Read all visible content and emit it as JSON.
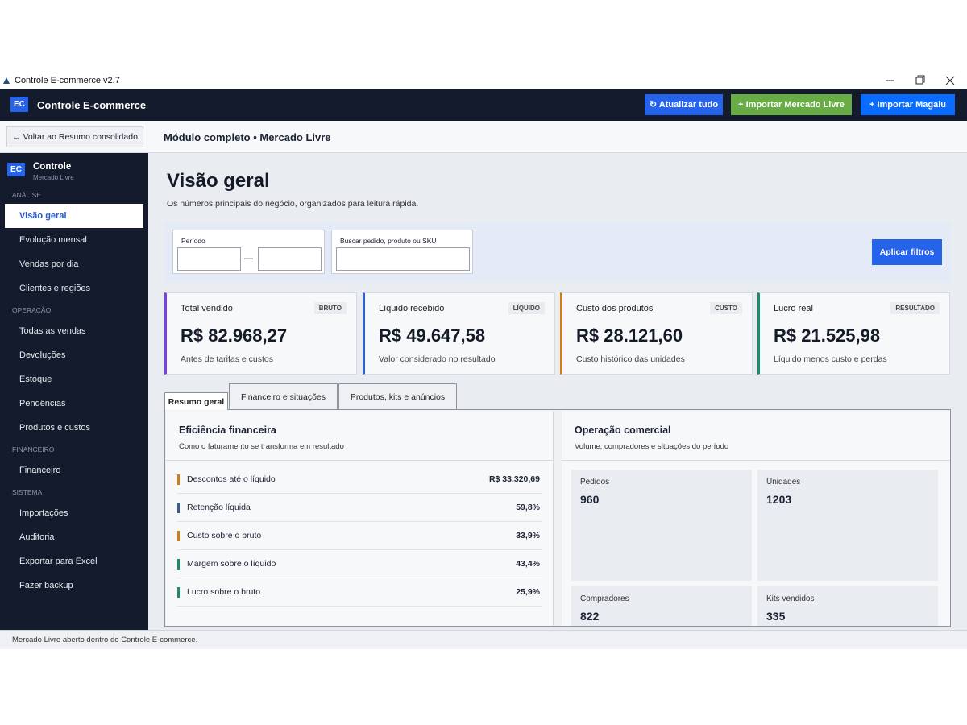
{
  "window": {
    "title": "Controle E-commerce v2.7"
  },
  "header": {
    "logo": "EC",
    "title": "Controle E-commerce",
    "buttons": [
      "↻ Atualizar tudo",
      "+ Importar Mercado Livre",
      "+ Importar Magalu"
    ]
  },
  "toolbar": {
    "back": "← Voltar ao Resumo consolidado",
    "title": "Módulo completo • Mercado Livre"
  },
  "sidebar": {
    "logo": "EC",
    "title": "Controle",
    "subtitle": "Mercado Livre",
    "sections": [
      {
        "label": "ANÁLISE",
        "items": [
          "Visão geral",
          "Evolução mensal",
          "Vendas por dia",
          "Clientes e regiões"
        ]
      },
      {
        "label": "OPERAÇÃO",
        "items": [
          "Todas as vendas",
          "Devoluções",
          "Estoque",
          "Pendências",
          "Produtos e custos"
        ]
      },
      {
        "label": "FINANCEIRO",
        "items": [
          "Financeiro"
        ]
      },
      {
        "label": "SISTEMA",
        "items": [
          "Importações",
          "Auditoria",
          "Exportar para Excel",
          "Fazer backup"
        ]
      }
    ]
  },
  "page": {
    "title": "Visão geral",
    "subtitle": "Os números principais do negócio, organizados para leitura rápida.",
    "filters": {
      "period_label": "Período",
      "separator": "—",
      "search_label": "Buscar pedido, produto ou SKU",
      "apply": "Aplicar filtros"
    }
  },
  "cards": [
    {
      "title": "Total vendido",
      "badge": "BRUTO",
      "value": "R$ 82.968,27",
      "note": "Antes de tarifas e custos"
    },
    {
      "title": "Líquido recebido",
      "badge": "LÍQUIDO",
      "value": "R$ 49.647,58",
      "note": "Valor considerado no resultado"
    },
    {
      "title": "Custo dos produtos",
      "badge": "CUSTO",
      "value": "R$ 28.121,60",
      "note": "Custo histórico das unidades"
    },
    {
      "title": "Lucro real",
      "badge": "RESULTADO",
      "value": "R$ 21.525,98",
      "note": "Líquido menos custo e perdas"
    }
  ],
  "tabs": [
    "Resumo geral",
    "Financeiro e situações",
    "Produtos, kits e anúncios"
  ],
  "efficiency": {
    "title": "Eficiência financeira",
    "subtitle": "Como o faturamento se transforma em resultado",
    "rows": [
      {
        "label": "Descontos até o líquido",
        "value": "R$ 33.320,69"
      },
      {
        "label": "Retenção líquida",
        "value": "59,8%"
      },
      {
        "label": "Custo sobre o bruto",
        "value": "33,9%"
      },
      {
        "label": "Margem sobre o líquido",
        "value": "43,4%"
      },
      {
        "label": "Lucro sobre o bruto",
        "value": "25,9%"
      }
    ]
  },
  "operation": {
    "title": "Operação comercial",
    "subtitle": "Volume, compradores e situações do período",
    "stats": [
      {
        "label": "Pedidos",
        "value": 960
      },
      {
        "label": "Unidades",
        "value": 1203
      },
      {
        "label": "Compradores",
        "value": 822
      },
      {
        "label": "Kits vendidos",
        "value": 335
      }
    ]
  },
  "status": "Mercado Livre aberto dentro do Controle E-commerce."
}
